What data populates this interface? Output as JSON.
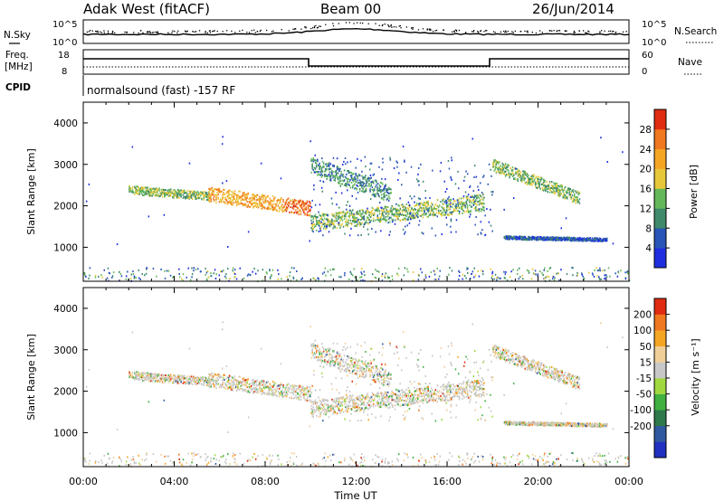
{
  "header": {
    "station": "Adak West (fitACF)",
    "beam": "Beam 00",
    "date": "26/Jun/2014"
  },
  "noise_panel": {
    "left_label": "N.Sky",
    "right_label": "N.Search",
    "left_ticks": [
      "10^5",
      "10^0"
    ],
    "right_ticks": [
      "10^5",
      "10^0"
    ]
  },
  "freq_panel": {
    "left_label_line1": "Freq.",
    "left_label_line2": "[MHz]",
    "right_label": "Nave",
    "left_ticks": [
      "18",
      "8"
    ],
    "right_ticks": [
      "60",
      "0"
    ]
  },
  "cpid": {
    "label": "CPID",
    "text": "normalsound (fast) -157 RF"
  },
  "chart_data": [
    {
      "type": "heatmap",
      "title": "",
      "ylabel": "Slant Range [km]",
      "xlabel": "Time UT",
      "ylim": [
        180,
        4500
      ],
      "xlim_hours": [
        0,
        24
      ],
      "y_ticks": [
        "1000",
        "2000",
        "3000",
        "4000"
      ],
      "colorbar": {
        "label": "Power [dB]",
        "ticks": [
          "4",
          "8",
          "12",
          "16",
          "20",
          "24",
          "28"
        ],
        "colors": [
          "#1f2fe0",
          "#2a55b8",
          "#3f8a6a",
          "#64b85a",
          "#e6c83a",
          "#f5a623",
          "#f07820",
          "#e02c10"
        ]
      },
      "echo_bands": [
        {
          "start_h": 2.0,
          "end_h": 5.5,
          "range_start_km": 2400,
          "range_end_km": 2250,
          "width_km": 200,
          "level": 3
        },
        {
          "start_h": 5.5,
          "end_h": 9.95,
          "range_start_km": 2300,
          "range_end_km": 1950,
          "width_km": 350,
          "level": 5
        },
        {
          "start_h": 10.0,
          "end_h": 13.5,
          "range_start_km": 3000,
          "range_end_km": 2300,
          "width_km": 400,
          "level": 2
        },
        {
          "start_h": 10.0,
          "end_h": 17.6,
          "range_start_km": 1600,
          "range_end_km": 2100,
          "width_km": 400,
          "level": 3
        },
        {
          "start_h": 18.0,
          "end_h": 21.8,
          "range_start_km": 3000,
          "range_end_km": 2200,
          "width_km": 300,
          "level": 3
        },
        {
          "start_h": 18.5,
          "end_h": 23.0,
          "range_start_km": 1250,
          "range_end_km": 1200,
          "width_km": 80,
          "level": 1
        }
      ]
    },
    {
      "type": "heatmap",
      "title": "",
      "ylabel": "Slant Range [km]",
      "xlabel": "Time UT",
      "ylim": [
        180,
        4500
      ],
      "xlim_hours": [
        0,
        24
      ],
      "y_ticks": [
        "1000",
        "2000",
        "3000",
        "4000"
      ],
      "colorbar": {
        "label": "Velocity [m s⁻¹]",
        "ticks": [
          "200",
          "100",
          "50",
          "15",
          "-15",
          "-50",
          "-100",
          "-200"
        ],
        "colors": [
          "#2030c0",
          "#3058a0",
          "#2e7a4a",
          "#40b040",
          "#a0d840",
          "#c8c8c8",
          "#f0d098",
          "#f5a623",
          "#f07820",
          "#e02c10"
        ]
      }
    }
  ],
  "x_axis": {
    "label": "Time UT",
    "ticks": [
      "00:00",
      "04:00",
      "08:00",
      "12:00",
      "16:00",
      "20:00",
      "00:00"
    ]
  }
}
